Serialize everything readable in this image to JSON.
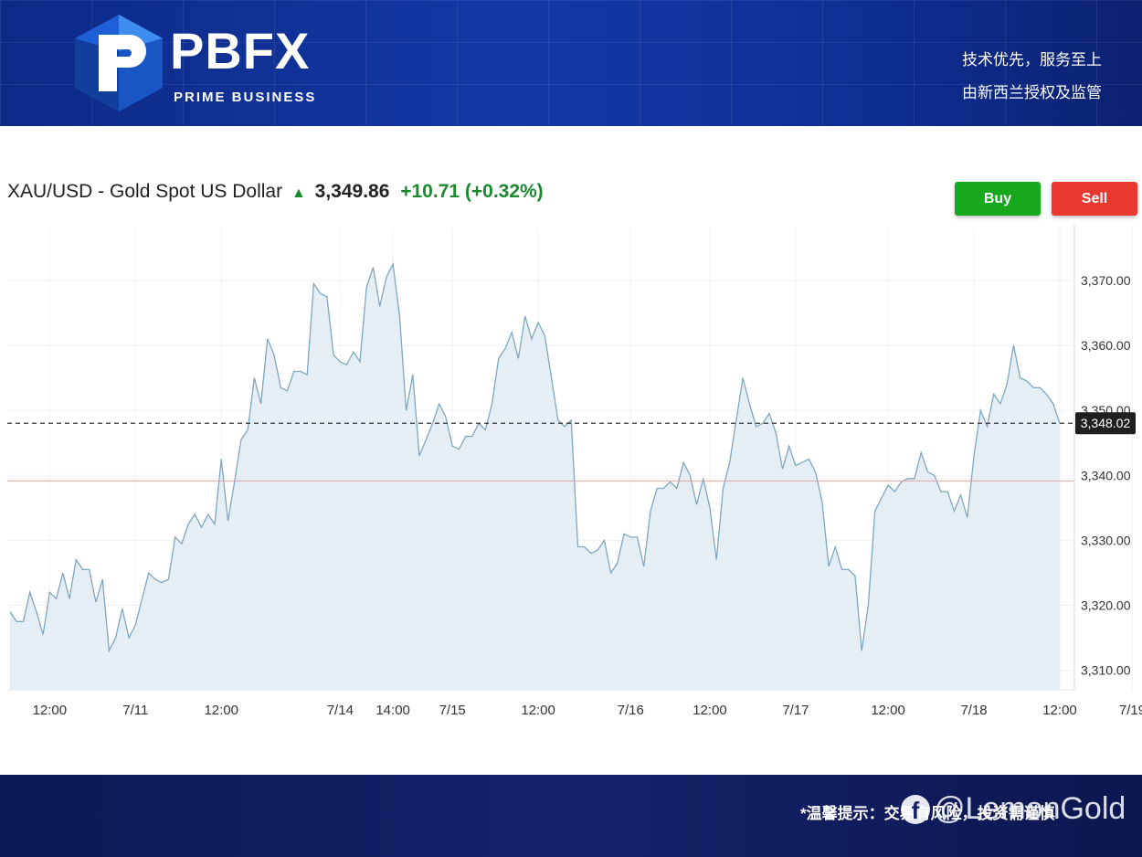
{
  "header": {
    "brand": "PBFX",
    "brand_sub": "PRIME BUSINESS",
    "slogan_line1": "技术优先，服务至上",
    "slogan_line2": "由新西兰授权及监管"
  },
  "quote": {
    "symbol": "XAU/USD - Gold Spot US Dollar",
    "price": "3,349.86",
    "change": "+10.71 (+0.32%)",
    "buy_label": "Buy",
    "sell_label": "Sell"
  },
  "colors": {
    "up": "#1a8a2e",
    "buy": "#18a81e",
    "sell": "#e8382f",
    "line": "#7fa7bf",
    "area": "#e6eef5",
    "ref": "#e8a0a0"
  },
  "footer": {
    "tip": "*温馨提示：交易有风险，投资需谨慎",
    "watermark": "@LemonGold"
  },
  "chart_data": {
    "type": "area",
    "title": "XAU/USD - Gold Spot US Dollar",
    "ylim": [
      3307,
      3378
    ],
    "y_ticks": [
      "3,310.00",
      "3,320.00",
      "3,330.00",
      "3,340.00",
      "3,350.00",
      "3,360.00",
      "3,370.00"
    ],
    "y_tick_values": [
      3310,
      3320,
      3330,
      3340,
      3350,
      3360,
      3370
    ],
    "x_ticks": [
      "12:00",
      "7/11",
      "12:00",
      "7/14",
      "14:00",
      "7/15",
      "12:00",
      "7/16",
      "12:00",
      "7/17",
      "12:00",
      "7/18",
      "12:00",
      "7/19"
    ],
    "x_tick_index": [
      6,
      19,
      32,
      50,
      58,
      67,
      80,
      94,
      106,
      119,
      133,
      146,
      159,
      170
    ],
    "current_price_label": "3,348.02",
    "current_price": 3348.02,
    "reference_line": 3339.15,
    "grid": true,
    "series": [
      {
        "values": [
          3319,
          3317.5,
          3317.5,
          3322,
          3319,
          3315.5,
          3322,
          3321,
          3325,
          3321,
          3327,
          3325.5,
          3325.5,
          3320.5,
          3324,
          3313,
          3315,
          3319.5,
          3315,
          3317,
          3321,
          3325,
          3324,
          3323.5,
          3324,
          3330.5,
          3329.5,
          3332.5,
          3334,
          3332,
          3334,
          3332.5,
          3342.5,
          3333,
          3339,
          3345.5,
          3347,
          3355,
          3351,
          3361,
          3358.5,
          3353.5,
          3353,
          3356,
          3356,
          3355.5,
          3369.5,
          3368,
          3367.5,
          3358.5,
          3357.5,
          3357,
          3359,
          3357.5,
          3369,
          3372,
          3366,
          3370.5,
          3372.5,
          3364.5,
          3350,
          3355.5,
          3343,
          3345.5,
          3348,
          3351,
          3349,
          3344.5,
          3344,
          3346,
          3346,
          3348,
          3347,
          3351,
          3358,
          3359.5,
          3362,
          3358,
          3364.5,
          3361,
          3363.5,
          3361.5,
          3355,
          3348.5,
          3347.5,
          3348.5,
          3329,
          3329,
          3328,
          3328.5,
          3330,
          3325,
          3326.5,
          3331,
          3330.5,
          3330.5,
          3326,
          3334.5,
          3338,
          3338,
          3339,
          3338,
          3342,
          3340,
          3335.5,
          3339.5,
          3335,
          3327,
          3338,
          3342,
          3348.5,
          3355,
          3351,
          3347.5,
          3348,
          3349.5,
          3346.5,
          3341,
          3344.5,
          3341.5,
          3342,
          3342.5,
          3340.5,
          3336,
          3326,
          3329,
          3325.5,
          3325.5,
          3324.5,
          3313,
          3320,
          3334.5,
          3336.5,
          3338.5,
          3337.5,
          3339,
          3339.5,
          3339.5,
          3343.5,
          3340.5,
          3340,
          3337.5,
          3337.5,
          3334.5,
          3337,
          3333.5,
          3343,
          3350,
          3347.5,
          3352.5,
          3351,
          3354,
          3360,
          3355,
          3354.5,
          3353.5,
          3353.5,
          3352.5,
          3351,
          3348
        ]
      }
    ]
  }
}
